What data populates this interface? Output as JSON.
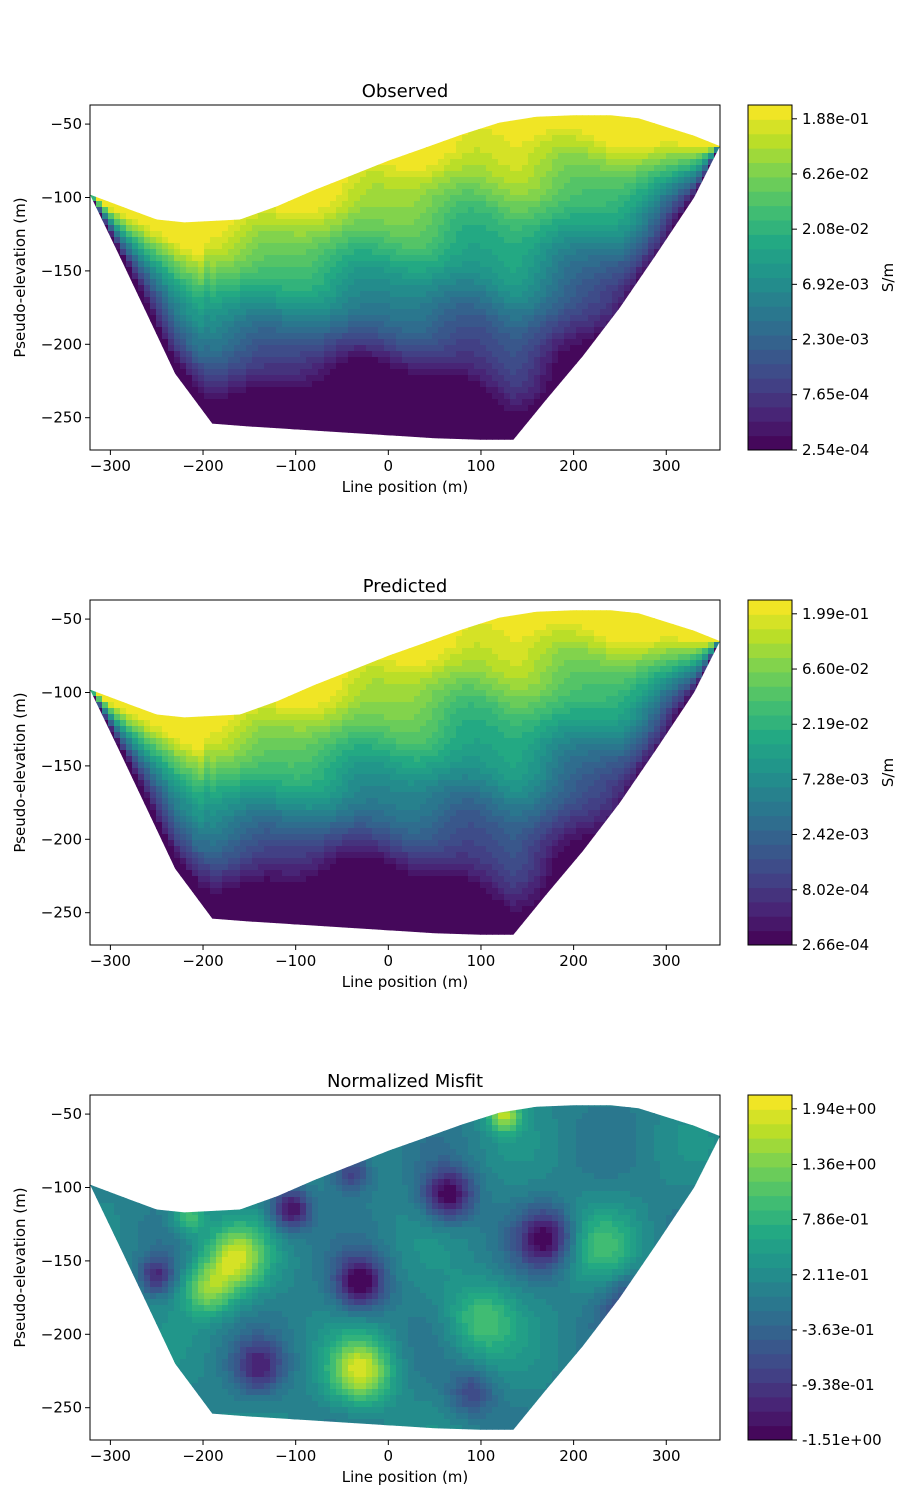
{
  "chart_data": [
    {
      "type": "contour",
      "title": "Observed",
      "xlabel": "Line position (m)",
      "ylabel": "Pseudo-elevation (m)",
      "xlim": [
        -322,
        358
      ],
      "ylim": [
        -272,
        -37
      ],
      "xticks": [
        -300,
        -200,
        -100,
        0,
        100,
        200,
        300
      ],
      "yticks": [
        -50,
        -100,
        -150,
        -200,
        -250
      ],
      "xtick_labels": [
        "−300",
        "−200",
        "−100",
        "0",
        "100",
        "200",
        "300"
      ],
      "ytick_labels": [
        "−50",
        "−100",
        "−150",
        "−200",
        "−250"
      ],
      "colorbar": {
        "label": "S/m",
        "scale": "log",
        "tick_labels": [
          "1.88e-01",
          "6.26e-02",
          "2.08e-02",
          "6.92e-03",
          "2.30e-03",
          "7.65e-04",
          "2.54e-04"
        ],
        "tick_values": [
          0.188,
          0.0626,
          0.0208,
          0.00692,
          0.0023,
          0.000765,
          0.000254
        ]
      },
      "colormap": "viridis",
      "boundary_top": [
        [
          -322,
          -98
        ],
        [
          -280,
          -108
        ],
        [
          -250,
          -115
        ],
        [
          -220,
          -117
        ],
        [
          -160,
          -115
        ],
        [
          -120,
          -106
        ],
        [
          -80,
          -95
        ],
        [
          -40,
          -85
        ],
        [
          0,
          -75
        ],
        [
          40,
          -66
        ],
        [
          80,
          -57
        ],
        [
          120,
          -49
        ],
        [
          160,
          -45
        ],
        [
          200,
          -44
        ],
        [
          240,
          -44
        ],
        [
          270,
          -46
        ],
        [
          300,
          -52
        ],
        [
          330,
          -58
        ],
        [
          358,
          -65
        ]
      ],
      "boundary_bottom": [
        [
          -322,
          -98
        ],
        [
          -290,
          -140
        ],
        [
          -260,
          -180
        ],
        [
          -230,
          -220
        ],
        [
          -190,
          -254
        ],
        [
          -150,
          -256
        ],
        [
          -100,
          -258
        ],
        [
          -50,
          -260
        ],
        [
          0,
          -262
        ],
        [
          50,
          -264
        ],
        [
          100,
          -265
        ],
        [
          135,
          -265
        ],
        [
          170,
          -238
        ],
        [
          210,
          -208
        ],
        [
          250,
          -175
        ],
        [
          290,
          -138
        ],
        [
          330,
          -100
        ],
        [
          358,
          -65
        ]
      ],
      "low_zone_center": [
        -20,
        -245
      ],
      "pattern": "smooth_log"
    },
    {
      "type": "contour",
      "title": "Predicted",
      "xlabel": "Line position (m)",
      "ylabel": "Pseudo-elevation (m)",
      "xlim": [
        -322,
        358
      ],
      "ylim": [
        -272,
        -37
      ],
      "xticks": [
        -300,
        -200,
        -100,
        0,
        100,
        200,
        300
      ],
      "yticks": [
        -50,
        -100,
        -150,
        -200,
        -250
      ],
      "xtick_labels": [
        "−300",
        "−200",
        "−100",
        "0",
        "100",
        "200",
        "300"
      ],
      "ytick_labels": [
        "−50",
        "−100",
        "−150",
        "−200",
        "−250"
      ],
      "colorbar": {
        "label": "S/m",
        "scale": "log",
        "tick_labels": [
          "1.99e-01",
          "6.60e-02",
          "2.19e-02",
          "7.28e-03",
          "2.42e-03",
          "8.02e-04",
          "2.66e-04"
        ],
        "tick_values": [
          0.199,
          0.066,
          0.0219,
          0.00728,
          0.00242,
          0.000802,
          0.000266
        ]
      },
      "colormap": "viridis",
      "boundary_top": [
        [
          -322,
          -98
        ],
        [
          -280,
          -108
        ],
        [
          -250,
          -115
        ],
        [
          -220,
          -117
        ],
        [
          -160,
          -115
        ],
        [
          -120,
          -106
        ],
        [
          -80,
          -95
        ],
        [
          -40,
          -85
        ],
        [
          0,
          -75
        ],
        [
          40,
          -66
        ],
        [
          80,
          -57
        ],
        [
          120,
          -49
        ],
        [
          160,
          -45
        ],
        [
          200,
          -44
        ],
        [
          240,
          -44
        ],
        [
          270,
          -46
        ],
        [
          300,
          -52
        ],
        [
          330,
          -58
        ],
        [
          358,
          -65
        ]
      ],
      "boundary_bottom": [
        [
          -322,
          -98
        ],
        [
          -290,
          -140
        ],
        [
          -260,
          -180
        ],
        [
          -230,
          -220
        ],
        [
          -190,
          -254
        ],
        [
          -150,
          -256
        ],
        [
          -100,
          -258
        ],
        [
          -50,
          -260
        ],
        [
          0,
          -262
        ],
        [
          50,
          -264
        ],
        [
          100,
          -265
        ],
        [
          135,
          -265
        ],
        [
          170,
          -238
        ],
        [
          210,
          -208
        ],
        [
          250,
          -175
        ],
        [
          290,
          -138
        ],
        [
          330,
          -100
        ],
        [
          358,
          -65
        ]
      ],
      "low_zone_center": [
        -40,
        -250
      ],
      "pattern": "smooth_log"
    },
    {
      "type": "contour",
      "title": "Normalized Misfit",
      "xlabel": "Line position (m)",
      "ylabel": "Pseudo-elevation (m)",
      "xlim": [
        -322,
        358
      ],
      "ylim": [
        -272,
        -37
      ],
      "xticks": [
        -300,
        -200,
        -100,
        0,
        100,
        200,
        300
      ],
      "yticks": [
        -50,
        -100,
        -150,
        -200,
        -250
      ],
      "xtick_labels": [
        "−300",
        "−200",
        "−100",
        "0",
        "100",
        "200",
        "300"
      ],
      "ytick_labels": [
        "−50",
        "−100",
        "−150",
        "−200",
        "−250"
      ],
      "colorbar": {
        "label": "",
        "scale": "linear",
        "tick_labels": [
          "1.94e+00",
          "1.36e+00",
          "7.86e-01",
          "2.11e-01",
          "-3.63e-01",
          "-9.38e-01",
          "-1.51e+00"
        ],
        "tick_values": [
          1.94,
          1.36,
          0.786,
          0.211,
          -0.363,
          -0.938,
          -1.51
        ]
      },
      "colormap": "viridis",
      "boundary_top": [
        [
          -322,
          -98
        ],
        [
          -280,
          -108
        ],
        [
          -250,
          -115
        ],
        [
          -220,
          -117
        ],
        [
          -160,
          -115
        ],
        [
          -120,
          -106
        ],
        [
          -80,
          -95
        ],
        [
          -40,
          -85
        ],
        [
          0,
          -75
        ],
        [
          40,
          -66
        ],
        [
          80,
          -57
        ],
        [
          120,
          -49
        ],
        [
          160,
          -45
        ],
        [
          200,
          -44
        ],
        [
          240,
          -44
        ],
        [
          270,
          -46
        ],
        [
          300,
          -52
        ],
        [
          330,
          -58
        ],
        [
          358,
          -65
        ]
      ],
      "boundary_bottom": [
        [
          -322,
          -98
        ],
        [
          -290,
          -140
        ],
        [
          -260,
          -180
        ],
        [
          -230,
          -220
        ],
        [
          -190,
          -254
        ],
        [
          -150,
          -256
        ],
        [
          -100,
          -258
        ],
        [
          -50,
          -260
        ],
        [
          0,
          -262
        ],
        [
          50,
          -264
        ],
        [
          100,
          -265
        ],
        [
          135,
          -265
        ],
        [
          170,
          -238
        ],
        [
          210,
          -208
        ],
        [
          250,
          -175
        ],
        [
          290,
          -138
        ],
        [
          330,
          -100
        ],
        [
          358,
          -65
        ]
      ],
      "misfit_blobs": [
        {
          "x": -165,
          "y": -148,
          "amp": 1.6,
          "r": 22
        },
        {
          "x": -195,
          "y": -170,
          "amp": 1.2,
          "r": 18
        },
        {
          "x": -215,
          "y": -120,
          "amp": 1.0,
          "r": 12
        },
        {
          "x": -30,
          "y": -225,
          "amp": 1.7,
          "r": 22
        },
        {
          "x": 125,
          "y": -50,
          "amp": 1.5,
          "r": 12
        },
        {
          "x": 100,
          "y": -190,
          "amp": 0.9,
          "r": 25
        },
        {
          "x": 230,
          "y": -140,
          "amp": 0.7,
          "r": 25
        },
        {
          "x": -105,
          "y": -115,
          "amp": -1.5,
          "r": 14
        },
        {
          "x": -30,
          "y": -165,
          "amp": -1.6,
          "r": 18
        },
        {
          "x": 65,
          "y": -105,
          "amp": -1.6,
          "r": 18
        },
        {
          "x": 170,
          "y": -135,
          "amp": -1.5,
          "r": 20
        },
        {
          "x": -140,
          "y": -222,
          "amp": -1.1,
          "r": 18
        },
        {
          "x": -250,
          "y": -160,
          "amp": -1.1,
          "r": 12
        },
        {
          "x": -40,
          "y": -90,
          "amp": -1.0,
          "r": 14
        },
        {
          "x": 260,
          "y": -180,
          "amp": -0.9,
          "r": 20
        },
        {
          "x": 90,
          "y": -240,
          "amp": -0.8,
          "r": 16
        }
      ],
      "pattern": "misfit"
    }
  ]
}
